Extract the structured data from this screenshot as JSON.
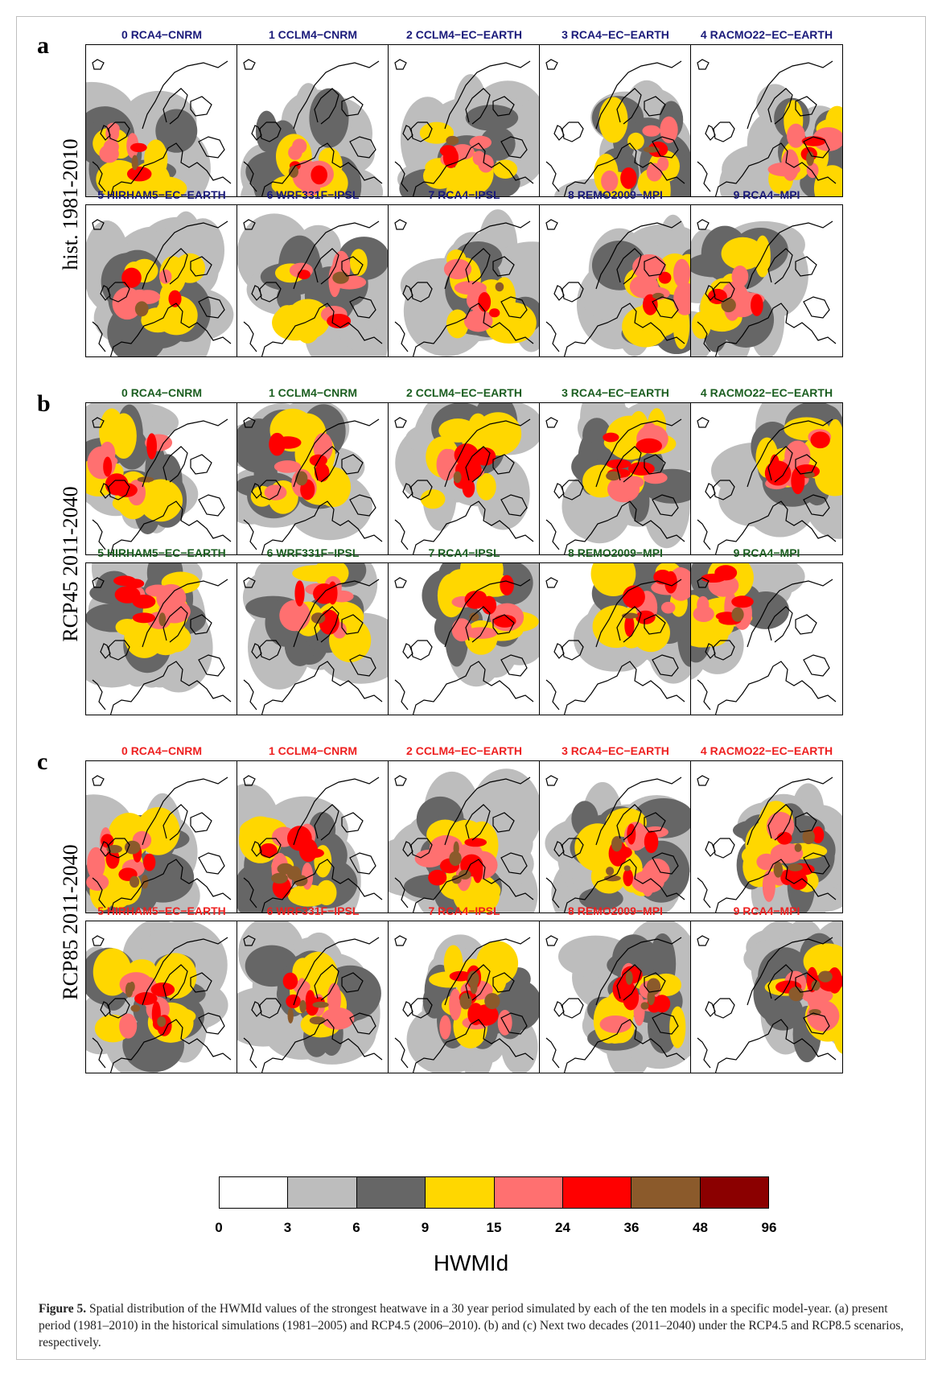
{
  "sections": [
    {
      "letter": "a",
      "label": "hist. 1981-2010",
      "title_color": "#1a1a7a",
      "rows": [
        [
          "0 RCA4−CNRM",
          "1 CCLM4−CNRM",
          "2 CCLM4−EC−EARTH",
          "3 RCA4−EC−EARTH",
          "4 RACMO22−EC−EARTH"
        ],
        [
          "5 HIRHAM5−EC−EARTH",
          "6 WRF331F−IPSL",
          "7 RCA4−IPSL",
          "8 REMO2009−MPI",
          "9 RCA4−MPI"
        ]
      ]
    },
    {
      "letter": "b",
      "label": "RCP45 2011-2040",
      "title_color": "#1b5e20",
      "rows": [
        [
          "0 RCA4−CNRM",
          "1 CCLM4−CNRM",
          "2 CCLM4−EC−EARTH",
          "3 RCA4−EC−EARTH",
          "4 RACMO22−EC−EARTH"
        ],
        [
          "5 HIRHAM5−EC−EARTH",
          "6 WRF331F−IPSL",
          "7 RCA4−IPSL",
          "8 REMO2009−MPI",
          "9 RCA4−MPI"
        ]
      ]
    },
    {
      "letter": "c",
      "label": "RCP85 2011-2040",
      "title_color": "#ee2020",
      "rows": [
        [
          "0 RCA4−CNRM",
          "1 CCLM4−CNRM",
          "2 CCLM4−EC−EARTH",
          "3 RCA4−EC−EARTH",
          "4 RACMO22−EC−EARTH"
        ],
        [
          "5 HIRHAM5−EC−EARTH",
          "6 WRF331F−IPSL",
          "7 RCA4−IPSL",
          "8 REMO2009−MPI",
          "9 RCA4−MPI"
        ]
      ]
    }
  ],
  "legend": {
    "title": "HWMId",
    "ticks": [
      "0",
      "3",
      "6",
      "9",
      "15",
      "24",
      "36",
      "48",
      "96"
    ],
    "colors": [
      "#ffffff",
      "#bdbdbd",
      "#666666",
      "#ffd700",
      "#ff7070",
      "#ff0000",
      "#8b5a2b",
      "#8b0000"
    ]
  },
  "caption": {
    "label": "Figure 5.",
    "text": " Spatial distribution of the HWMId values of the strongest heatwave in a 30 year period simulated by each of the ten models in a specific model-year. (a) present period (1981–2010) in the historical simulations (1981–2005) and RCP4.5 (2006–2010). (b) and (c) Next two decades (2011–2040) under the RCP4.5 and RCP8.5 scenarios, respectively."
  }
}
